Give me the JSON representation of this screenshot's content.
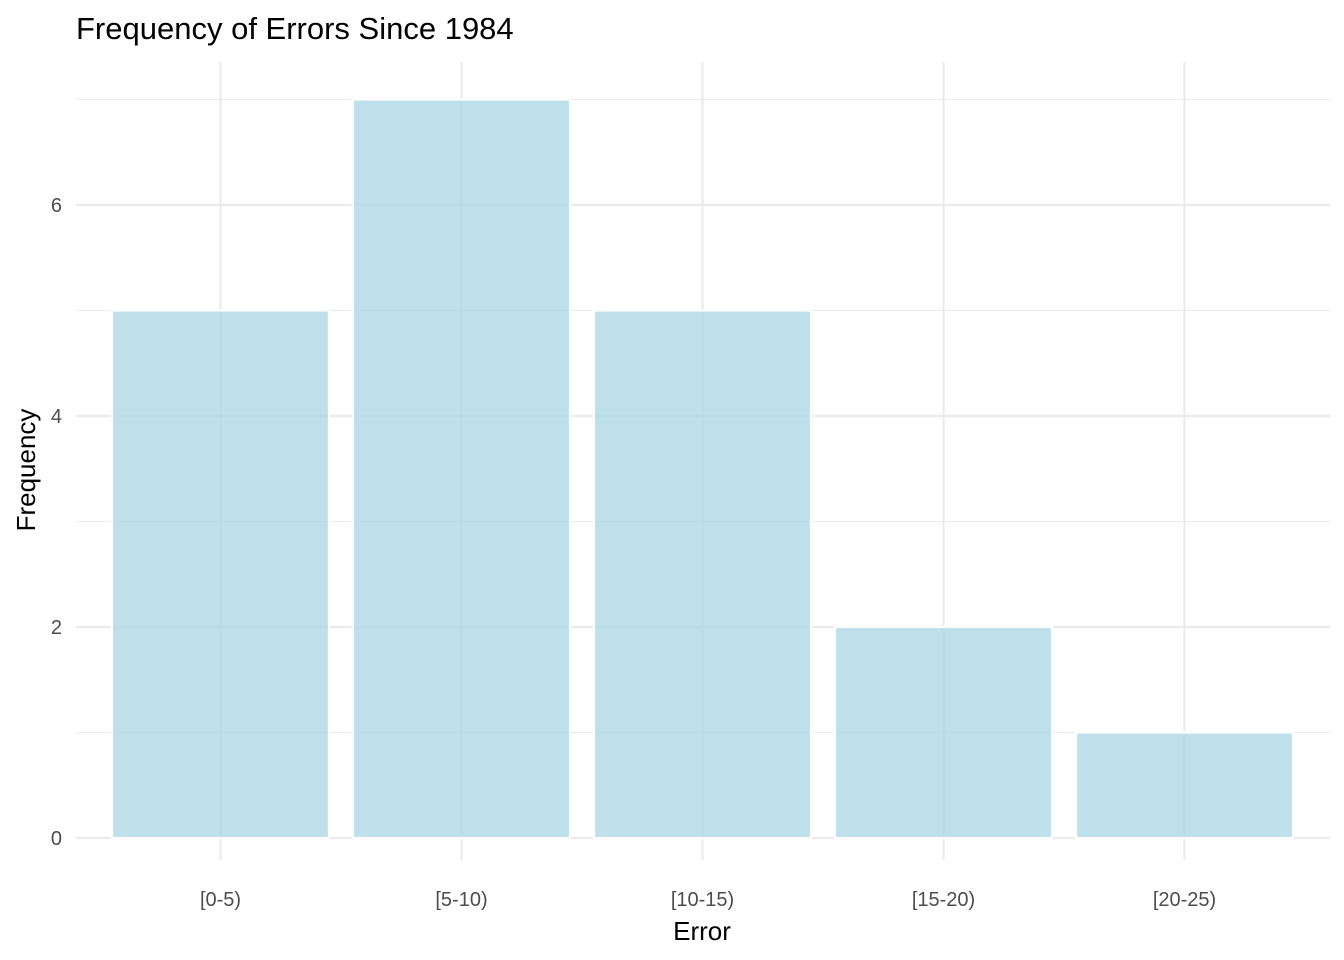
{
  "chart_data": {
    "type": "bar",
    "title": "Frequency of Errors Since 1984",
    "xlabel": "Error",
    "ylabel": "Frequency",
    "categories": [
      "[0-5)",
      "[5-10)",
      "[10-15)",
      "[15-20)",
      "[20-25)"
    ],
    "values": [
      5,
      7,
      5,
      2,
      1
    ],
    "ylim": [
      0,
      7.35
    ],
    "y_ticks": [
      0,
      2,
      4,
      6
    ],
    "y_tick_labels": [
      "0",
      "2",
      "4",
      "6"
    ],
    "grid": true,
    "legend": "none",
    "bar_color": "#add8e6",
    "bar_opacity": 0.8,
    "background": "#ffffff"
  }
}
